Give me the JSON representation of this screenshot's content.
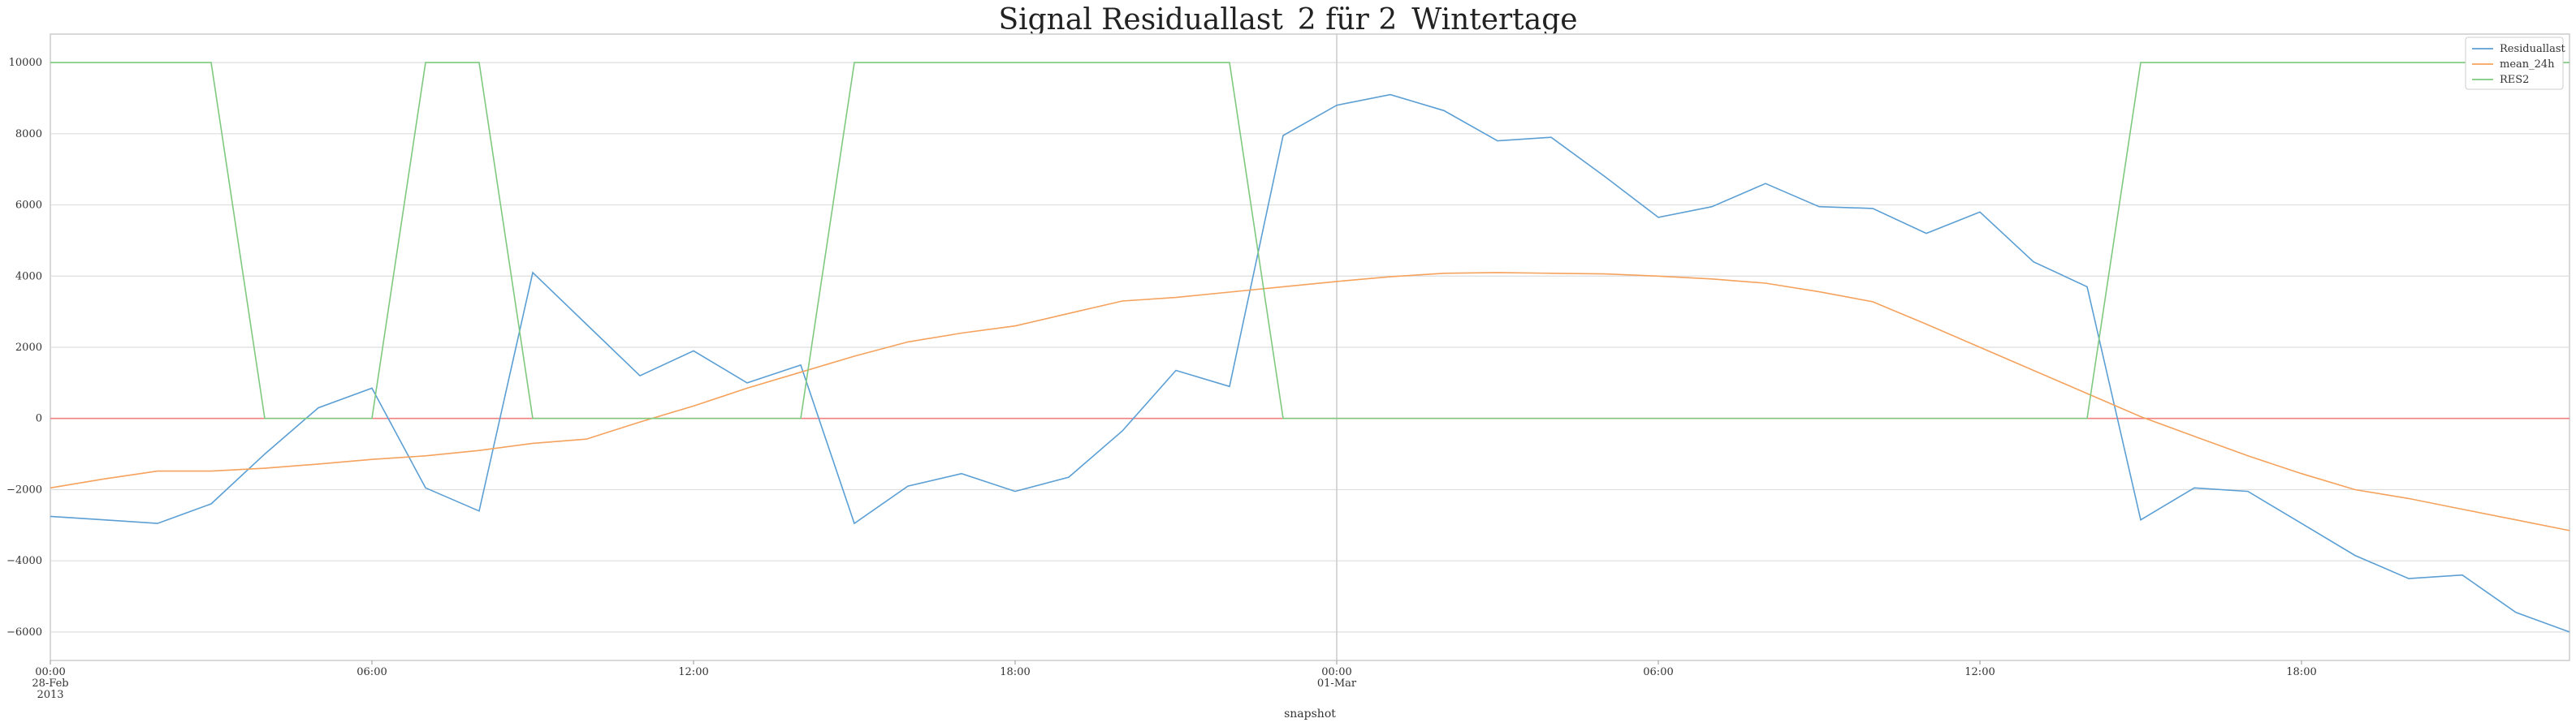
{
  "chart_data": {
    "type": "line",
    "title": "Signal Residuallast_2 für 2_Wintertage",
    "xlabel": "snapshot",
    "ylabel": "",
    "ylim": [
      -6800,
      10800
    ],
    "yticks": [
      -6000,
      -4000,
      -2000,
      0,
      2000,
      4000,
      6000,
      8000,
      10000
    ],
    "x_hours": 47,
    "x_ticks": [
      {
        "hour": 0,
        "label": [
          "00:00",
          "28-Feb",
          "2013"
        ]
      },
      {
        "hour": 6,
        "label": [
          "06:00"
        ]
      },
      {
        "hour": 12,
        "label": [
          "12:00"
        ]
      },
      {
        "hour": 18,
        "label": [
          "18:00"
        ]
      },
      {
        "hour": 24,
        "label": [
          "00:00",
          "01-Mar"
        ]
      },
      {
        "hour": 30,
        "label": [
          "06:00"
        ]
      },
      {
        "hour": 36,
        "label": [
          "12:00"
        ]
      },
      {
        "hour": 42,
        "label": [
          "18:00"
        ]
      }
    ],
    "grid": true,
    "legend_position": "top-right",
    "series": [
      {
        "name": "Residuallast",
        "color": "#5b9fd4",
        "values": [
          -2750,
          -2850,
          -2950,
          -2400,
          -1000,
          300,
          850,
          -1950,
          -2600,
          4100,
          2650,
          1200,
          1900,
          1000,
          1500,
          -2950,
          -1900,
          -1550,
          -2050,
          -1650,
          -350,
          1350,
          900,
          7950,
          8800,
          9100,
          8650,
          7800,
          7900,
          6800,
          5650,
          5950,
          6600,
          5950,
          5900,
          5200,
          5800,
          4400,
          3700,
          -2850,
          -1950,
          -2050,
          -2950,
          -3850,
          -4500,
          -4400,
          -5450,
          -6000
        ]
      },
      {
        "name": "mean_24h",
        "color": "#f5a25d",
        "values": [
          -1950,
          -1700,
          -1480,
          -1480,
          -1400,
          -1280,
          -1150,
          -1050,
          -900,
          -700,
          -580,
          -100,
          350,
          850,
          1300,
          1750,
          2150,
          2400,
          2600,
          2950,
          3300,
          3400,
          3550,
          3700,
          3850,
          3980,
          4080,
          4100,
          4080,
          4060,
          4000,
          3920,
          3800,
          3560,
          3280,
          2650,
          2000,
          1350,
          700,
          50,
          -500,
          -1050,
          -1550,
          -2000,
          -2250,
          -2550,
          -2850,
          -3150
        ]
      },
      {
        "name": "RES2",
        "color": "#7fc97f",
        "values": [
          10000,
          10000,
          10000,
          10000,
          0,
          0,
          0,
          10000,
          10000,
          0,
          0,
          0,
          0,
          0,
          0,
          10000,
          10000,
          10000,
          10000,
          10000,
          10000,
          10000,
          10000,
          0,
          0,
          0,
          0,
          0,
          0,
          0,
          0,
          0,
          0,
          0,
          0,
          0,
          0,
          0,
          0,
          10000,
          10000,
          10000,
          10000,
          10000,
          10000,
          10000,
          10000,
          10000
        ]
      }
    ],
    "reference_line": {
      "y": 0,
      "color": "#f08080"
    },
    "vertical_line_hour": 24
  }
}
